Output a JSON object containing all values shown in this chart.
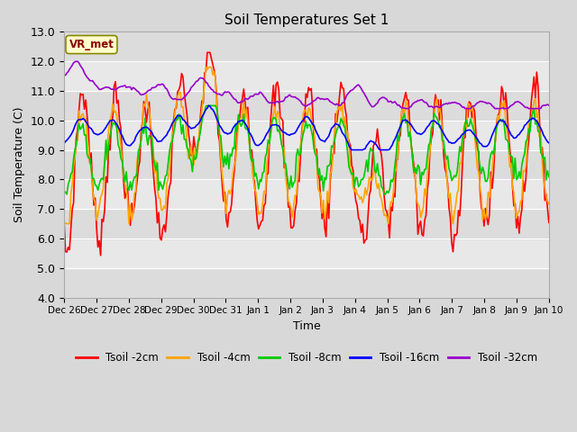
{
  "title": "Soil Temperatures Set 1",
  "xlabel": "Time",
  "ylabel": "Soil Temperature (C)",
  "ylim": [
    4.0,
    13.0
  ],
  "yticks": [
    4.0,
    5.0,
    6.0,
    7.0,
    8.0,
    9.0,
    10.0,
    11.0,
    12.0,
    13.0
  ],
  "xtick_labels": [
    "Dec 26",
    "Dec 27",
    "Dec 28",
    "Dec 29",
    "Dec 30",
    "Dec 31",
    "Jan 1",
    "Jan 2",
    "Jan 3",
    "Jan 4",
    "Jan 5",
    "Jan 6",
    "Jan 7",
    "Jan 8",
    "Jan 9",
    "Jan 10"
  ],
  "annotation_text": "VR_met",
  "annotation_color": "#8B0000",
  "annotation_bg": "#FFFFCC",
  "colors": {
    "Tsoil -2cm": "#FF0000",
    "Tsoil -4cm": "#FFA500",
    "Tsoil -8cm": "#00CC00",
    "Tsoil -16cm": "#0000FF",
    "Tsoil -32cm": "#9900CC"
  },
  "stripe_colors": [
    "#DCDCDC",
    "#E8E8E8"
  ],
  "fig_bg": "#D8D8D8",
  "plot_bg": "#E8E8E8",
  "linewidth": 1.2
}
